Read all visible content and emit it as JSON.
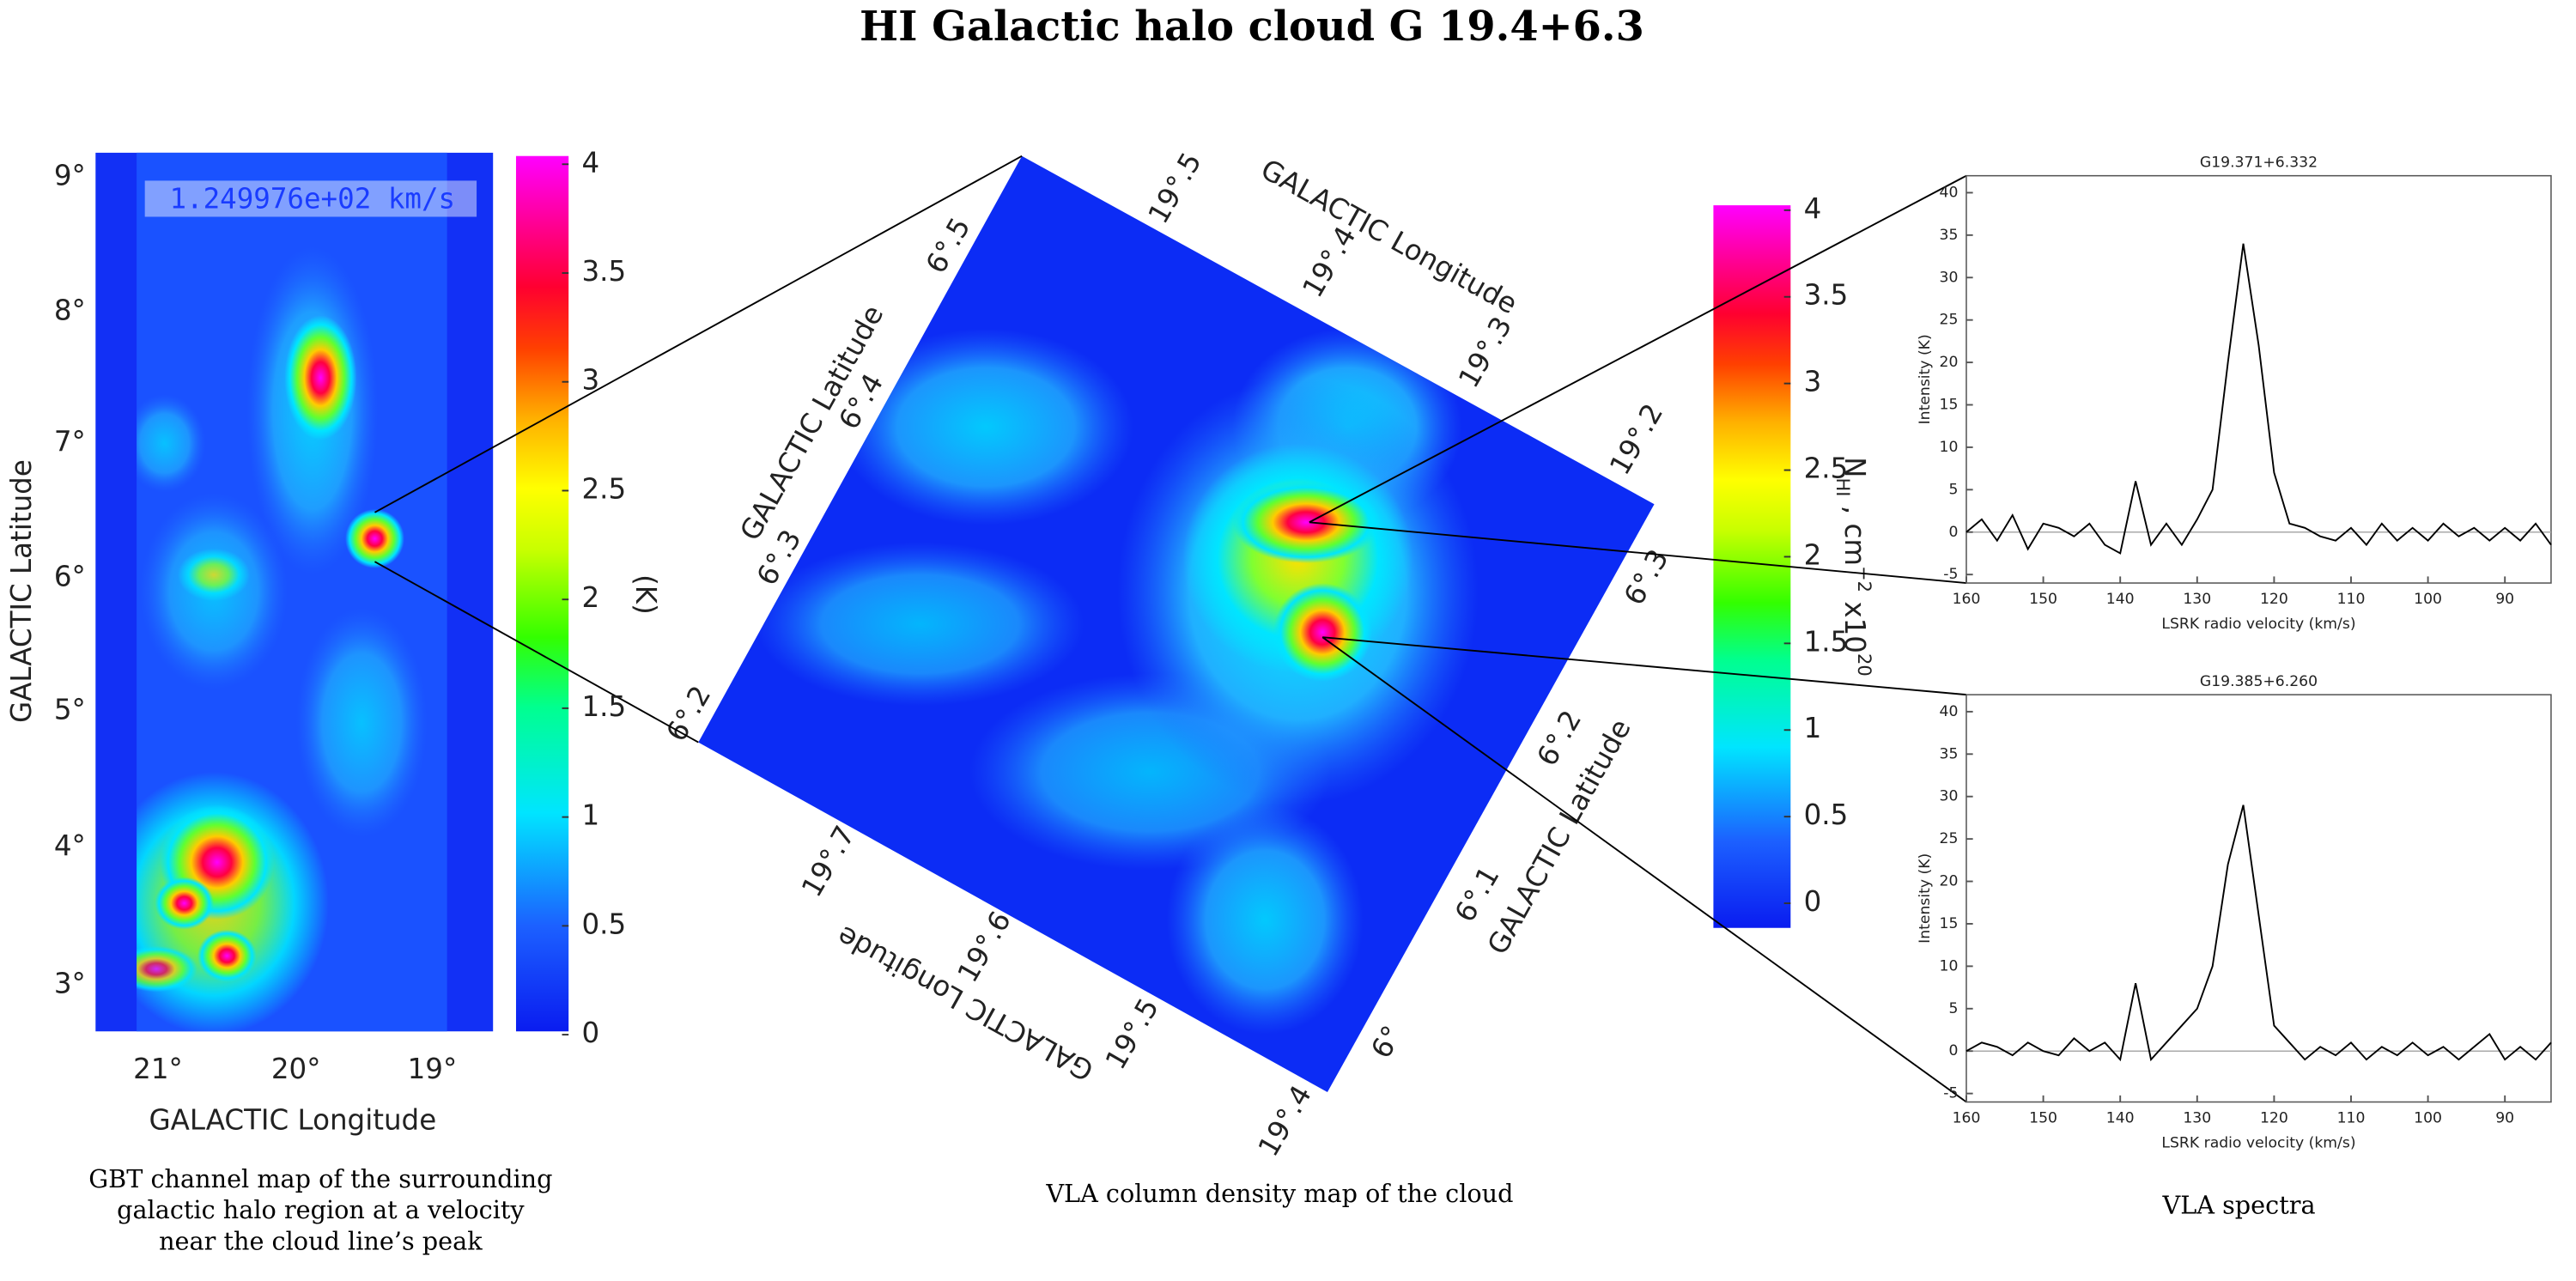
{
  "title": "HI Galactic halo cloud G 19.4+6.3",
  "gbt_map": {
    "velocity_label": "1.249976e+02 km/s",
    "xlabel": "GALACTIC Longitude",
    "ylabel": "GALACTIC Latitude",
    "xticks": [
      "21°",
      "20°",
      "19°"
    ],
    "yticks": [
      "9°",
      "8°",
      "7°",
      "6°",
      "5°",
      "4°",
      "3°"
    ],
    "caption": [
      "GBT channel map of the surrounding",
      "galactic halo region at a velocity",
      "near the cloud line’s peak"
    ]
  },
  "gbt_colorbar": {
    "label": "(K)",
    "range": [
      0,
      4
    ],
    "ticks": [
      0,
      0.5,
      1,
      1.5,
      2,
      2.5,
      3,
      3.5,
      4
    ]
  },
  "vla_map": {
    "top_longitude_ticks": [
      "19°.5",
      "19°.4",
      "19°.3",
      "19°.2"
    ],
    "top_longitude_label": "GALACTIC Longitude",
    "left_latitude_ticks": [
      "6°.5",
      "6°.4",
      "6°.3",
      "6°.2"
    ],
    "left_latitude_label": "GALACTIC Latitude",
    "bottom_longitude_ticks": [
      "19°.7",
      "19°.6",
      "19°.5",
      "19°.4"
    ],
    "bottom_longitude_label": "GALACTIC Longitude",
    "right_latitude_ticks": [
      "6°.3",
      "6°.2",
      "6°.1",
      "6°"
    ],
    "right_latitude_label": "GALACTIC Latitude",
    "caption": "VLA column density map of the cloud"
  },
  "vla_colorbar": {
    "label": [
      "N",
      "HI",
      " , cm",
      "−2",
      "  x10",
      "20"
    ],
    "range": [
      0,
      4
    ],
    "ticks": [
      0,
      0.5,
      1,
      1.5,
      2,
      2.5,
      3,
      3.5,
      4
    ]
  },
  "spectra_caption": "VLA spectra",
  "chart_data": [
    {
      "type": "line",
      "title": "G19.371+6.332",
      "xlabel": "LSRK radio velocity (km/s)",
      "ylabel": "Intensity (K)",
      "color": "#000000",
      "x": [
        160,
        158,
        156,
        154,
        152,
        150,
        148,
        146,
        144,
        142,
        140,
        138,
        136,
        134,
        132,
        130,
        128,
        126,
        124,
        122,
        120,
        118,
        116,
        114,
        112,
        110,
        108,
        106,
        104,
        102,
        100,
        98,
        96,
        94,
        92,
        90,
        88,
        86,
        84
      ],
      "values": [
        0,
        1.5,
        -1,
        2,
        -2,
        1,
        0.5,
        -0.5,
        1,
        -1.5,
        -2.5,
        6,
        -1.5,
        1,
        -1.5,
        1.5,
        5,
        20,
        34,
        22,
        7,
        1,
        0.5,
        -0.5,
        -1,
        0.5,
        -1.5,
        1,
        -1,
        0.5,
        -1,
        1,
        -0.5,
        0.5,
        -1,
        0.5,
        -1,
        1,
        -1.5
      ],
      "xlim": [
        160,
        84
      ],
      "ylim": [
        -6,
        42
      ],
      "xticks": [
        160,
        150,
        140,
        130,
        120,
        110,
        100,
        90
      ],
      "yticks": [
        -5,
        0,
        5,
        10,
        15,
        20,
        25,
        30,
        35,
        40
      ]
    },
    {
      "type": "line",
      "title": "G19.385+6.260",
      "xlabel": "LSRK radio velocity (km/s)",
      "ylabel": "Intensity (K)",
      "color": "#000000",
      "x": [
        160,
        158,
        156,
        154,
        152,
        150,
        148,
        146,
        144,
        142,
        140,
        138,
        136,
        134,
        132,
        130,
        128,
        126,
        124,
        122,
        120,
        118,
        116,
        114,
        112,
        110,
        108,
        106,
        104,
        102,
        100,
        98,
        96,
        94,
        92,
        90,
        88,
        86,
        84
      ],
      "values": [
        0,
        1,
        0.5,
        -0.5,
        1,
        0,
        -0.5,
        1.5,
        0,
        1,
        -1,
        8,
        -1,
        1,
        3,
        5,
        10,
        22,
        29,
        16,
        3,
        1,
        -1,
        0.5,
        -0.5,
        1,
        -1,
        0.5,
        -0.5,
        1,
        -0.5,
        0.5,
        -1,
        0.5,
        2,
        -1,
        0.5,
        -1,
        1
      ],
      "xlim": [
        160,
        84
      ],
      "ylim": [
        -6,
        42
      ],
      "xticks": [
        160,
        150,
        140,
        130,
        120,
        110,
        100,
        90
      ],
      "yticks": [
        -5,
        0,
        5,
        10,
        15,
        20,
        25,
        30,
        35,
        40
      ]
    }
  ]
}
